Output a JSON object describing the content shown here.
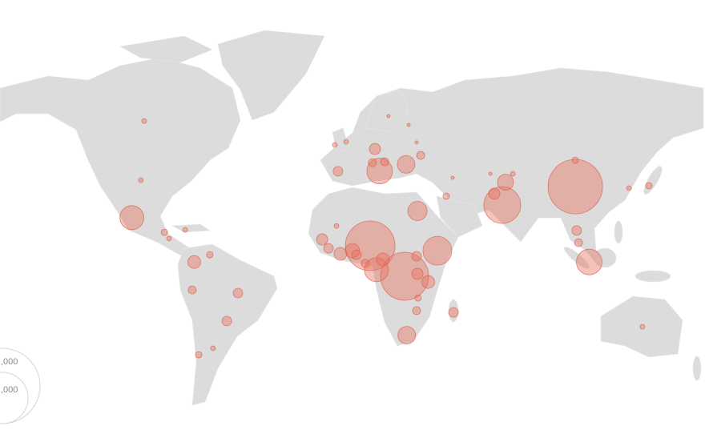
{
  "colors": {
    "land": "#dcdcdc",
    "bubble_fill": "#e9705c",
    "bubble_stroke": "#d66450",
    "background": "#ffffff"
  },
  "legend": {
    "labels": [
      ",000",
      ",000"
    ]
  },
  "bubbles": [
    {
      "lon": 104.5,
      "lat": 35,
      "size": 34
    },
    {
      "lon": 9,
      "lat": 8.3,
      "size": 31
    },
    {
      "lon": 25,
      "lat": -5.4,
      "size": 30
    },
    {
      "lon": 70.5,
      "lat": 26.7,
      "size": 23
    },
    {
      "lon": 40.3,
      "lat": 6.1,
      "size": 18
    },
    {
      "lon": 111,
      "lat": 1,
      "size": 16
    },
    {
      "lon": -102,
      "lat": 21,
      "size": 15
    },
    {
      "lon": 13.4,
      "lat": 42,
      "size": 16
    },
    {
      "lon": 11.9,
      "lat": -2.5,
      "size": 15
    },
    {
      "lon": 31,
      "lat": 24,
      "size": 12
    },
    {
      "lon": 25.7,
      "lat": 45,
      "size": 11
    },
    {
      "lon": 26,
      "lat": -32,
      "size": 11
    },
    {
      "lon": 72,
      "lat": 37,
      "size": 10
    },
    {
      "lon": 36,
      "lat": -8,
      "size": 8
    },
    {
      "lon": 47.8,
      "lat": -21.7,
      "size": 6
    },
    {
      "lon": -52.6,
      "lat": -13,
      "size": 6
    },
    {
      "lon": -73,
      "lat": 1,
      "size": 8
    },
    {
      "lon": -13.4,
      "lat": 11.2,
      "size": 7
    },
    {
      "lon": -10.4,
      "lat": 7.2,
      "size": 6
    },
    {
      "lon": -4.9,
      "lat": 4.7,
      "size": 8
    },
    {
      "lon": 0.7,
      "lat": 6.1,
      "size": 9
    },
    {
      "lon": 2.6,
      "lat": 4.3,
      "size": 6
    },
    {
      "lon": 31,
      "lat": -4.3,
      "size": 7
    },
    {
      "lon": 30.6,
      "lat": 3.6,
      "size": 6
    },
    {
      "lon": 30.6,
      "lat": -20.9,
      "size": 5
    },
    {
      "lon": 66.8,
      "lat": 31.8,
      "size": 7
    },
    {
      "lon": -6,
      "lat": 41.9,
      "size": 6
    },
    {
      "lon": 11.2,
      "lat": 52,
      "size": 7
    },
    {
      "lon": 10,
      "lat": 45.8,
      "size": 5
    },
    {
      "lon": 15.7,
      "lat": 46.2,
      "size": 5
    },
    {
      "lon": 32.5,
      "lat": 49.1,
      "size": 5
    },
    {
      "lon": 31.3,
      "lat": -15.2,
      "size": 4
    },
    {
      "lon": -57.8,
      "lat": -25.6,
      "size": 6
    },
    {
      "lon": -73.9,
      "lat": -11.6,
      "size": 5
    },
    {
      "lon": -70.9,
      "lat": -40.8,
      "size": 4
    },
    {
      "lon": -64.2,
      "lat": -37.9,
      "size": 3
    },
    {
      "lon": -65.7,
      "lat": 4.3,
      "size": 4
    },
    {
      "lon": -86.9,
      "lat": 14.4,
      "size": 4
    },
    {
      "lon": -84.7,
      "lat": 11.6,
      "size": 3
    },
    {
      "lon": -77.2,
      "lat": 15.5,
      "size": 3
    },
    {
      "lon": -97.8,
      "lat": 37.9,
      "size": 3
    },
    {
      "lon": -96.3,
      "lat": 64.6,
      "size": 3
    },
    {
      "lon": -7.5,
      "lat": 53.8,
      "size": 3
    },
    {
      "lon": -2.2,
      "lat": 55.2,
      "size": 3
    },
    {
      "lon": 138.8,
      "lat": 35.4,
      "size": 4
    },
    {
      "lon": 129.5,
      "lat": 34.3,
      "size": 3
    },
    {
      "lon": 105.2,
      "lat": 15.2,
      "size": 6
    },
    {
      "lon": 106,
      "lat": 9.7,
      "size": 5
    },
    {
      "lon": 135.8,
      "lat": -28.2,
      "size": 3
    },
    {
      "lon": 104.5,
      "lat": 46.9,
      "size": 4
    },
    {
      "lon": 44.4,
      "lat": 30.7,
      "size": 4
    },
    {
      "lon": 14.9,
      "lat": 2.2,
      "size": 8
    },
    {
      "lon": 6.7,
      "lat": 0.4,
      "size": 5
    },
    {
      "lon": 17.5,
      "lat": 66.8,
      "size": 2
    },
    {
      "lon": 26.9,
      "lat": 62.8,
      "size": 2
    },
    {
      "lon": 30.6,
      "lat": 54.9,
      "size": 2
    },
    {
      "lon": 47.4,
      "lat": 39,
      "size": 2
    },
    {
      "lon": 65,
      "lat": 40.8,
      "size": 2
    },
    {
      "lon": 75.4,
      "lat": 40.8,
      "size": 3
    },
    {
      "lon": -6.7,
      "lat": 17.3,
      "size": 3
    }
  ]
}
